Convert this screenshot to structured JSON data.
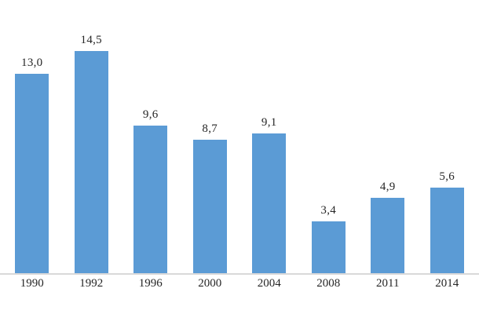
{
  "chart_data": {
    "type": "bar",
    "title": "",
    "xlabel": "",
    "ylabel": "",
    "categories": [
      "1990",
      "1992",
      "1996",
      "2000",
      "2004",
      "2008",
      "2011",
      "2014"
    ],
    "values": [
      13.0,
      14.5,
      9.6,
      8.7,
      9.1,
      3.4,
      4.9,
      5.6
    ],
    "value_labels": [
      "13,0",
      "14,5",
      "9,6",
      "8,7",
      "9,1",
      "3,4",
      "4,9",
      "5,6"
    ],
    "ylim": [
      0,
      17.8
    ],
    "grid": false,
    "legend": false,
    "x_axis_line": true,
    "colors": {
      "bar": "#5b9bd5",
      "axis_line": "#d9d9d9",
      "text": "#262626",
      "background": "#ffffff"
    }
  }
}
